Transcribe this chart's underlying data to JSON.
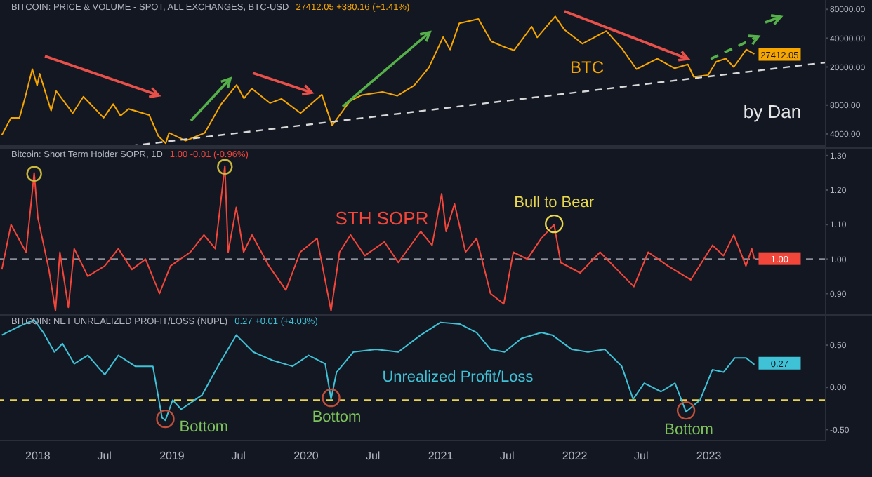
{
  "chart_data": [
    {
      "type": "line",
      "title": "BITCOIN: PRICE & VOLUME - SPOT, ALL EXCHANGES, BTC-USD",
      "subtitle": "27412.05 +380.16 (+1.41%)",
      "x": [
        "2017-09-25",
        "2017-10-20",
        "2017-11-12",
        "2017-11-28",
        "2017-12-17",
        "2017-12-30",
        "2018-01-06",
        "2018-02-06",
        "2018-02-20",
        "2018-04-06",
        "2018-05-05",
        "2018-06-29",
        "2018-07-25",
        "2018-08-14",
        "2018-09-05",
        "2018-10-31",
        "2018-11-25",
        "2018-12-15",
        "2018-12-24",
        "2019-02-07",
        "2019-03-31",
        "2019-05-15",
        "2019-06-26",
        "2019-07-16",
        "2019-08-06",
        "2019-09-25",
        "2019-10-26",
        "2019-12-17",
        "2020-02-13",
        "2020-03-12",
        "2020-04-29",
        "2020-06-01",
        "2020-07-27",
        "2020-09-05",
        "2020-10-21",
        "2020-11-30",
        "2021-01-08",
        "2021-01-27",
        "2021-02-21",
        "2021-04-14",
        "2021-05-19",
        "2021-06-22",
        "2021-07-20",
        "2021-09-06",
        "2021-09-21",
        "2021-11-09",
        "2021-12-04",
        "2022-01-22",
        "2022-03-28",
        "2022-05-10",
        "2022-06-18",
        "2022-08-14",
        "2022-09-30",
        "2022-11-05",
        "2022-11-21",
        "2022-12-30",
        "2023-01-21",
        "2023-02-16",
        "2023-03-10",
        "2023-04-13",
        "2023-05-05"
      ],
      "series": [
        {
          "name": "BTC",
          "color": "#f7a600",
          "values": [
            3900,
            5900,
            5900,
            9800,
            19000,
            12800,
            17000,
            7000,
            11200,
            6600,
            9800,
            5900,
            8200,
            6200,
            7300,
            6300,
            3800,
            3200,
            4100,
            3400,
            4100,
            8200,
            13000,
            9400,
            11900,
            8400,
            9300,
            6600,
            10300,
            4900,
            8800,
            10200,
            11000,
            10000,
            12800,
            19700,
            41000,
            30400,
            57000,
            63500,
            37000,
            32500,
            29800,
            52700,
            40700,
            67500,
            49000,
            35000,
            47500,
            31000,
            19000,
            24400,
            19400,
            21300,
            15800,
            16500,
            22700,
            24500,
            20000,
            30400,
            27412.05
          ],
          "value_labels": [
            null,
            null,
            null,
            null,
            null,
            null,
            null,
            null,
            null,
            null,
            null,
            null,
            null,
            null,
            null,
            null,
            null,
            null,
            null,
            null,
            null,
            null,
            null,
            null,
            null,
            null,
            null,
            null,
            null,
            null,
            null,
            null,
            null,
            null,
            null,
            null,
            null,
            null,
            null,
            null,
            null,
            null,
            null,
            null,
            null,
            null,
            null,
            null,
            null,
            null,
            null,
            null,
            null,
            null,
            null,
            null,
            null,
            null,
            null,
            null,
            "27412.05"
          ]
        },
        {
          "type": "line",
          "x": [
            "2018-09-10",
            "2023-11-15"
          ],
          "values": [
            3000,
            22300
          ],
          "color": "#d8d8d8",
          "line_style": "dashed"
        }
      ],
      "log": "y",
      "xlim": [
        "2017-09-20",
        "2023-11-15"
      ],
      "ylim": [
        3000,
        100000
      ],
      "yticks": [
        {
          "value": 4000,
          "label": "4000.00"
        },
        {
          "value": 8000,
          "label": "8000.00"
        },
        {
          "value": 20000,
          "label": "20000.00"
        },
        {
          "value": 40000,
          "label": "40000.00"
        },
        {
          "value": 80000,
          "label": "80000.00"
        }
      ],
      "tick_labels": "y",
      "annotations": [
        "by Dan"
      ]
    },
    {
      "type": "line",
      "title": "Bitcoin: Short Term Holder SOPR, 1D",
      "subtitle": "1.00 -0.01 (-0.96%)",
      "x": [
        "2017-09-25",
        "2017-10-20",
        "2017-11-30",
        "2017-12-22",
        "2018-01-01",
        "2018-01-31",
        "2018-02-18",
        "2018-03-02",
        "2018-03-25",
        "2018-04-10",
        "2018-05-17",
        "2018-07-02",
        "2018-08-08",
        "2018-09-14",
        "2018-10-21",
        "2018-11-28",
        "2018-12-28",
        "2019-02-20",
        "2019-03-29",
        "2019-04-29",
        "2019-05-25",
        "2019-06-03",
        "2019-06-25",
        "2019-07-15",
        "2019-08-07",
        "2019-09-22",
        "2019-11-07",
        "2019-12-16",
        "2020-01-31",
        "2020-03-09",
        "2020-04-01",
        "2020-05-01",
        "2020-06-09",
        "2020-08-01",
        "2020-09-08",
        "2020-11-08",
        "2020-12-09",
        "2021-01-04",
        "2021-01-16",
        "2021-02-08",
        "2021-03-10",
        "2021-04-09",
        "2021-05-17",
        "2021-06-22",
        "2021-07-18",
        "2021-08-25",
        "2021-10-02",
        "2021-11-06",
        "2021-11-24",
        "2022-01-16",
        "2022-03-11",
        "2022-04-26",
        "2022-06-11",
        "2022-07-20",
        "2022-09-12",
        "2022-11-13",
        "2023-01-11",
        "2023-02-10",
        "2023-03-10",
        "2023-04-12",
        "2023-04-28",
        "2023-05-05"
      ],
      "series": [
        {
          "name": "STH SOPR",
          "color": "#f2463a",
          "values": [
            0.97,
            1.1,
            1.02,
            1.25,
            1.12,
            0.97,
            0.85,
            1.02,
            0.86,
            1.03,
            0.95,
            0.98,
            1.03,
            0.97,
            1.0,
            0.9,
            0.98,
            1.02,
            1.07,
            1.03,
            1.27,
            1.02,
            1.15,
            1.02,
            1.07,
            0.98,
            0.91,
            1.02,
            1.06,
            0.85,
            1.02,
            1.07,
            1.01,
            1.05,
            0.99,
            1.08,
            1.04,
            1.19,
            1.08,
            1.16,
            1.02,
            1.06,
            0.9,
            0.87,
            1.02,
            1.0,
            1.06,
            1.1,
            0.99,
            0.96,
            1.02,
            0.97,
            0.92,
            1.02,
            0.98,
            0.94,
            1.04,
            1.01,
            1.07,
            0.98,
            1.03,
            1.0
          ],
          "value_labels": [
            null,
            null,
            null,
            null,
            null,
            null,
            null,
            null,
            null,
            null,
            null,
            null,
            null,
            null,
            null,
            null,
            null,
            null,
            null,
            null,
            null,
            null,
            null,
            null,
            null,
            null,
            null,
            null,
            null,
            null,
            null,
            null,
            null,
            null,
            null,
            null,
            null,
            null,
            null,
            null,
            null,
            null,
            null,
            null,
            null,
            null,
            null,
            null,
            null,
            null,
            null,
            null,
            null,
            null,
            null,
            null,
            null,
            null,
            null,
            null,
            null,
            "1.00"
          ]
        }
      ],
      "xlim": [
        "2017-09-20",
        "2023-11-15"
      ],
      "ylim": [
        0.84,
        1.32
      ],
      "yticks": [
        {
          "value": 0.9,
          "label": "0.90"
        },
        {
          "value": 1.0,
          "label": "1.00"
        },
        {
          "value": 1.1,
          "label": "1.10"
        },
        {
          "value": 1.2,
          "label": "1.20"
        },
        {
          "value": 1.3,
          "label": "1.30"
        }
      ],
      "tick_labels": "y",
      "ref_lines": [
        {
          "axis": "y",
          "value": 1.0,
          "color": "#8c8f99",
          "line_style": "dashed"
        }
      ],
      "annotations": [
        {
          "text": "Bull to Bear",
          "x": "2021-11-06",
          "y": 1.1
        }
      ]
    },
    {
      "type": "line",
      "title": "BITCOIN: NET UNREALIZED PROFIT/LOSS (NUPL)",
      "subtitle": "0.27 +0.01 (+4.03%)",
      "x": [
        "2017-09-25",
        "2017-11-10",
        "2017-12-22",
        "2018-01-16",
        "2018-02-15",
        "2018-03-09",
        "2018-04-10",
        "2018-05-17",
        "2018-07-02",
        "2018-08-08",
        "2018-09-23",
        "2018-11-10",
        "2018-12-05",
        "2018-12-14",
        "2019-01-03",
        "2019-01-26",
        "2019-03-24",
        "2019-05-10",
        "2019-06-25",
        "2019-08-10",
        "2019-10-02",
        "2019-11-25",
        "2020-01-08",
        "2020-02-22",
        "2020-03-09",
        "2020-03-24",
        "2020-05-09",
        "2020-07-09",
        "2020-09-08",
        "2020-11-08",
        "2021-01-01",
        "2021-02-23",
        "2021-04-09",
        "2021-05-17",
        "2021-06-24",
        "2021-08-09",
        "2021-10-02",
        "2021-11-01",
        "2021-12-24",
        "2022-02-06",
        "2022-03-24",
        "2022-05-09",
        "2022-06-09",
        "2022-07-09",
        "2022-08-24",
        "2022-10-01",
        "2022-10-31",
        "2022-12-08",
        "2023-01-11",
        "2023-02-10",
        "2023-03-13",
        "2023-04-12",
        "2023-05-05"
      ],
      "series": [
        {
          "name": "Unrealized Profit/Loss",
          "color": "#3fc1d6",
          "values": [
            0.62,
            0.72,
            0.8,
            0.65,
            0.42,
            0.52,
            0.28,
            0.38,
            0.15,
            0.38,
            0.25,
            0.25,
            -0.36,
            -0.39,
            -0.15,
            -0.26,
            -0.09,
            0.28,
            0.62,
            0.42,
            0.32,
            0.25,
            0.38,
            0.28,
            -0.14,
            0.18,
            0.42,
            0.45,
            0.42,
            0.62,
            0.77,
            0.75,
            0.65,
            0.45,
            0.42,
            0.58,
            0.65,
            0.62,
            0.45,
            0.42,
            0.45,
            0.25,
            -0.14,
            0.05,
            -0.05,
            0.05,
            -0.29,
            -0.15,
            0.21,
            0.18,
            0.35,
            0.35,
            0.27
          ],
          "value_labels": [
            null,
            null,
            null,
            null,
            null,
            null,
            null,
            null,
            null,
            null,
            null,
            null,
            null,
            null,
            null,
            null,
            null,
            null,
            null,
            null,
            null,
            null,
            null,
            null,
            null,
            null,
            null,
            null,
            null,
            null,
            null,
            null,
            null,
            null,
            null,
            null,
            null,
            null,
            null,
            null,
            null,
            null,
            null,
            null,
            null,
            null,
            null,
            null,
            null,
            null,
            null,
            null,
            "0.27"
          ]
        }
      ],
      "xlim": [
        "2017-09-20",
        "2023-11-15"
      ],
      "ylim": [
        -0.63,
        0.85
      ],
      "xticks": [
        "2018",
        {
          "value": "2018-07",
          "label": "Jul"
        },
        "2019",
        {
          "value": "2019-07",
          "label": "Jul"
        },
        "2020",
        {
          "value": "2020-07",
          "label": "Jul"
        },
        "2021",
        {
          "value": "2021-07",
          "label": "Jul"
        },
        "2022",
        {
          "value": "2022-07",
          "label": "Jul"
        },
        "2023"
      ],
      "yticks": [
        {
          "value": -0.5,
          "label": "-0.50"
        },
        {
          "value": 0,
          "label": "0.00"
        },
        {
          "value": 0.5,
          "label": "0.50"
        }
      ],
      "ref_lines": [
        {
          "axis": "y",
          "value": -0.15,
          "color": "#e8d44d",
          "line_style": "dashed"
        }
      ],
      "annotations": [
        {
          "text": "Bottom",
          "x": "2018-12-14",
          "y": -0.39
        },
        {
          "text": "Bottom",
          "x": "2020-03-09",
          "y": -0.14
        },
        {
          "text": "Bottom",
          "x": "2022-10-31",
          "y": -0.29
        }
      ]
    }
  ]
}
